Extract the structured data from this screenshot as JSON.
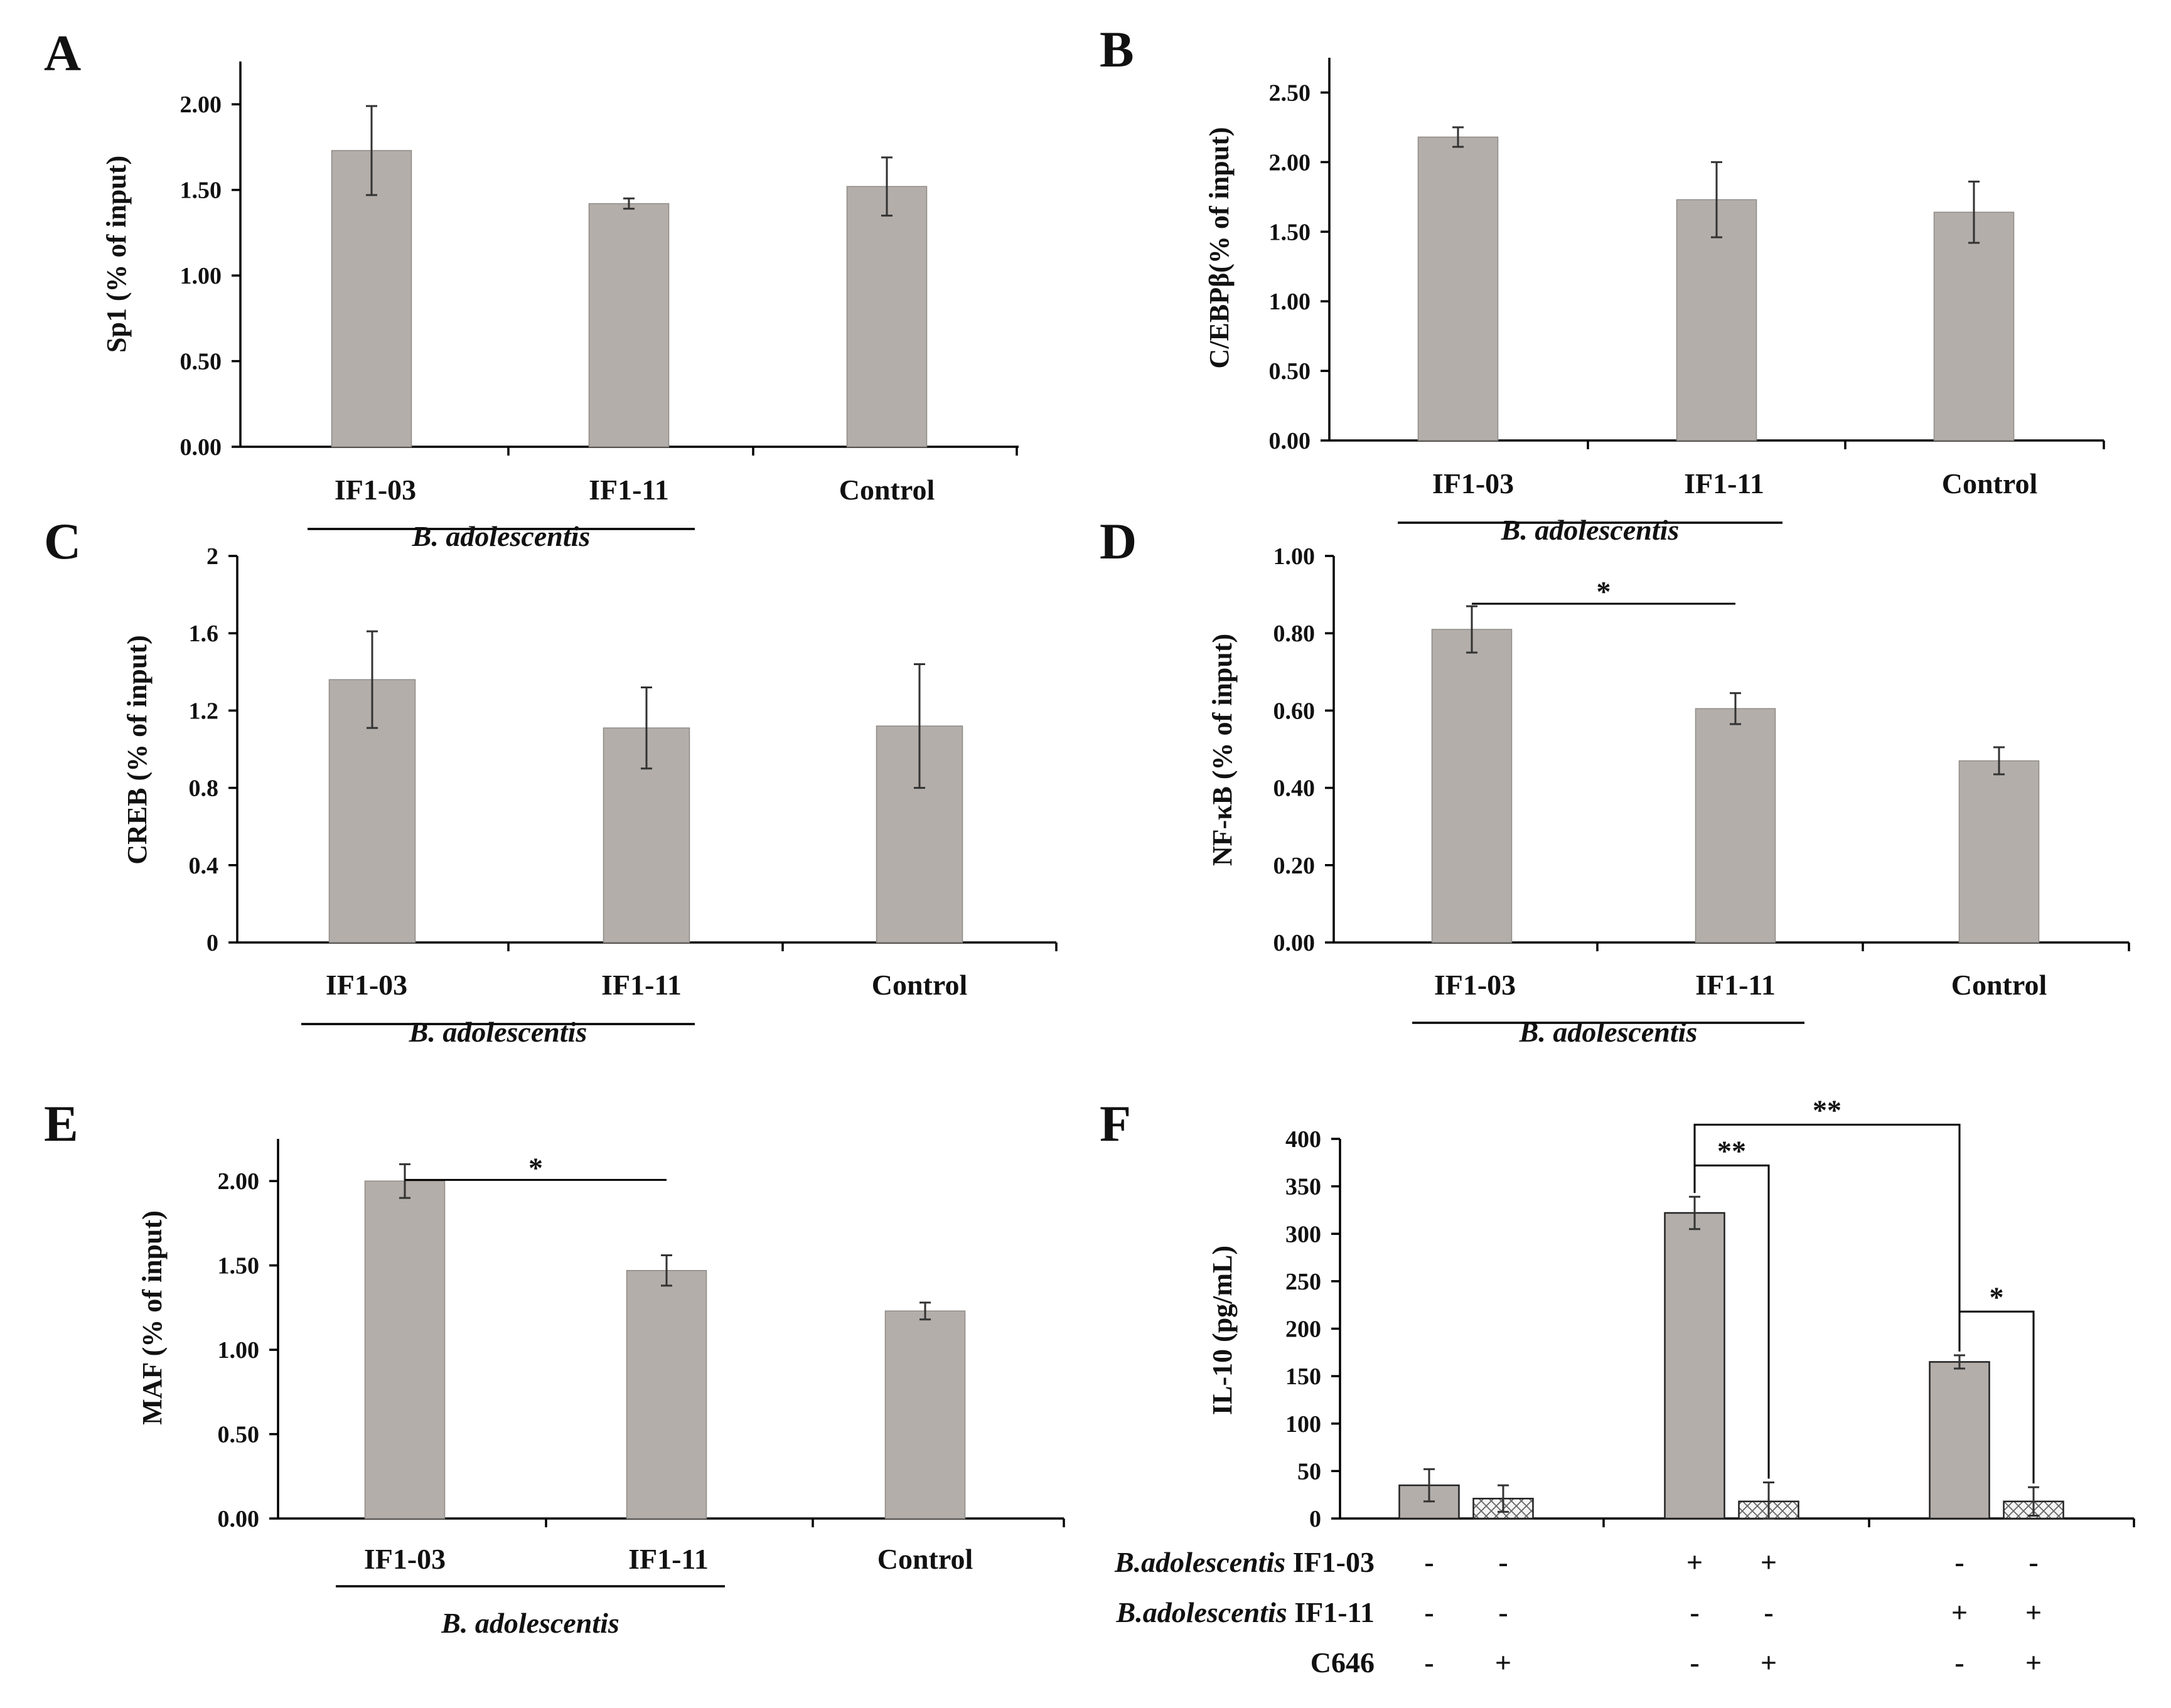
{
  "chart_data": [
    {
      "id": "A",
      "panel_label": "A",
      "type": "bar",
      "ylabel": "Sp1 (% of input)",
      "ylim": [
        0,
        2.25
      ],
      "yticks": [
        "0.00",
        "0.50",
        "1.00",
        "1.50",
        "2.00"
      ],
      "categories": [
        "IF1-03",
        "IF1-11",
        "Control"
      ],
      "values": [
        1.73,
        1.42,
        1.52
      ],
      "errors": [
        0.26,
        0.03,
        0.17
      ],
      "bar_color": "#b3aeaa",
      "group_label": "B. adolescentis",
      "significance": []
    },
    {
      "id": "B",
      "panel_label": "B",
      "type": "bar",
      "ylabel": "C/EBPβ(% of input)",
      "ylim": [
        0,
        2.75
      ],
      "yticks": [
        "0.00",
        "0.50",
        "1.00",
        "1.50",
        "2.00",
        "2.50"
      ],
      "categories": [
        "IF1-03",
        "IF1-11",
        "Control"
      ],
      "values": [
        2.18,
        1.73,
        1.64
      ],
      "errors": [
        0.07,
        0.27,
        0.22
      ],
      "bar_color": "#b3aeaa",
      "group_label": "B. adolescentis",
      "significance": []
    },
    {
      "id": "C",
      "panel_label": "C",
      "type": "bar",
      "ylabel": "CREB (% of input)",
      "ylim": [
        0,
        2.0
      ],
      "yticks": [
        "0",
        "0.4",
        "0.8",
        "1.2",
        "1.6",
        "2"
      ],
      "categories": [
        "IF1-03",
        "IF1-11",
        "Control"
      ],
      "values": [
        1.36,
        1.11,
        1.12
      ],
      "errors": [
        0.25,
        0.21,
        0.32
      ],
      "bar_color": "#b3aeaa",
      "group_label": "B. adolescentis",
      "significance": []
    },
    {
      "id": "D",
      "panel_label": "D",
      "type": "bar",
      "ylabel": "NF-κB (% of input)",
      "ylim": [
        0,
        1.0
      ],
      "yticks": [
        "0.00",
        "0.20",
        "0.40",
        "0.60",
        "0.80",
        "1.00"
      ],
      "categories": [
        "IF1-03",
        "IF1-11",
        "Control"
      ],
      "values": [
        0.81,
        0.605,
        0.47
      ],
      "errors": [
        0.06,
        0.04,
        0.035
      ],
      "bar_color": "#b3aeaa",
      "group_label": "B. adolescentis",
      "significance": [
        {
          "from": 0,
          "to": 1,
          "label": "*"
        }
      ]
    },
    {
      "id": "E",
      "panel_label": "E",
      "type": "bar",
      "ylabel": "MAF  (% of input)",
      "ylim": [
        0,
        2.25
      ],
      "yticks": [
        "0.00",
        "0.50",
        "1.00",
        "1.50",
        "2.00"
      ],
      "categories": [
        "IF1-03",
        "IF1-11",
        "Control"
      ],
      "values": [
        2.0,
        1.47,
        1.23
      ],
      "errors": [
        0.1,
        0.09,
        0.05
      ],
      "bar_color": "#b3aeaa",
      "group_label": "B. adolescentis",
      "significance": [
        {
          "from": 0,
          "to": 1,
          "label": "*"
        }
      ]
    },
    {
      "id": "F",
      "panel_label": "F",
      "type": "bar",
      "ylabel": "IL-10 (pg/mL)",
      "ylim": [
        0,
        400
      ],
      "yticks": [
        "0",
        "50",
        "100",
        "150",
        "200",
        "250",
        "300",
        "350",
        "400"
      ],
      "values": [
        35,
        21,
        322,
        18,
        165,
        18
      ],
      "errors": [
        17,
        14,
        17,
        20,
        7,
        15
      ],
      "patterns": [
        "solid",
        "hatched",
        "solid",
        "hatched",
        "solid",
        "hatched"
      ],
      "bar_color": "#b3aeaa",
      "treatments": [
        {
          "label_italic": "B.adolescentis",
          "label_rest": " IF1-03",
          "signs": [
            "-",
            "-",
            "+",
            "+",
            "-",
            "-"
          ]
        },
        {
          "label_italic": "B.adolescentis",
          "label_rest": " IF1-11",
          "signs": [
            "-",
            "-",
            "-",
            "-",
            "+",
            "+"
          ]
        },
        {
          "label_italic": "",
          "label_rest": "C646",
          "signs": [
            "-",
            "+",
            "-",
            "+",
            "-",
            "+"
          ]
        }
      ],
      "significance": [
        {
          "from": 2,
          "to": 3,
          "label": "**"
        },
        {
          "from": 2,
          "to": 4,
          "label": "**"
        },
        {
          "from": 4,
          "to": 5,
          "label": "*"
        }
      ]
    }
  ]
}
